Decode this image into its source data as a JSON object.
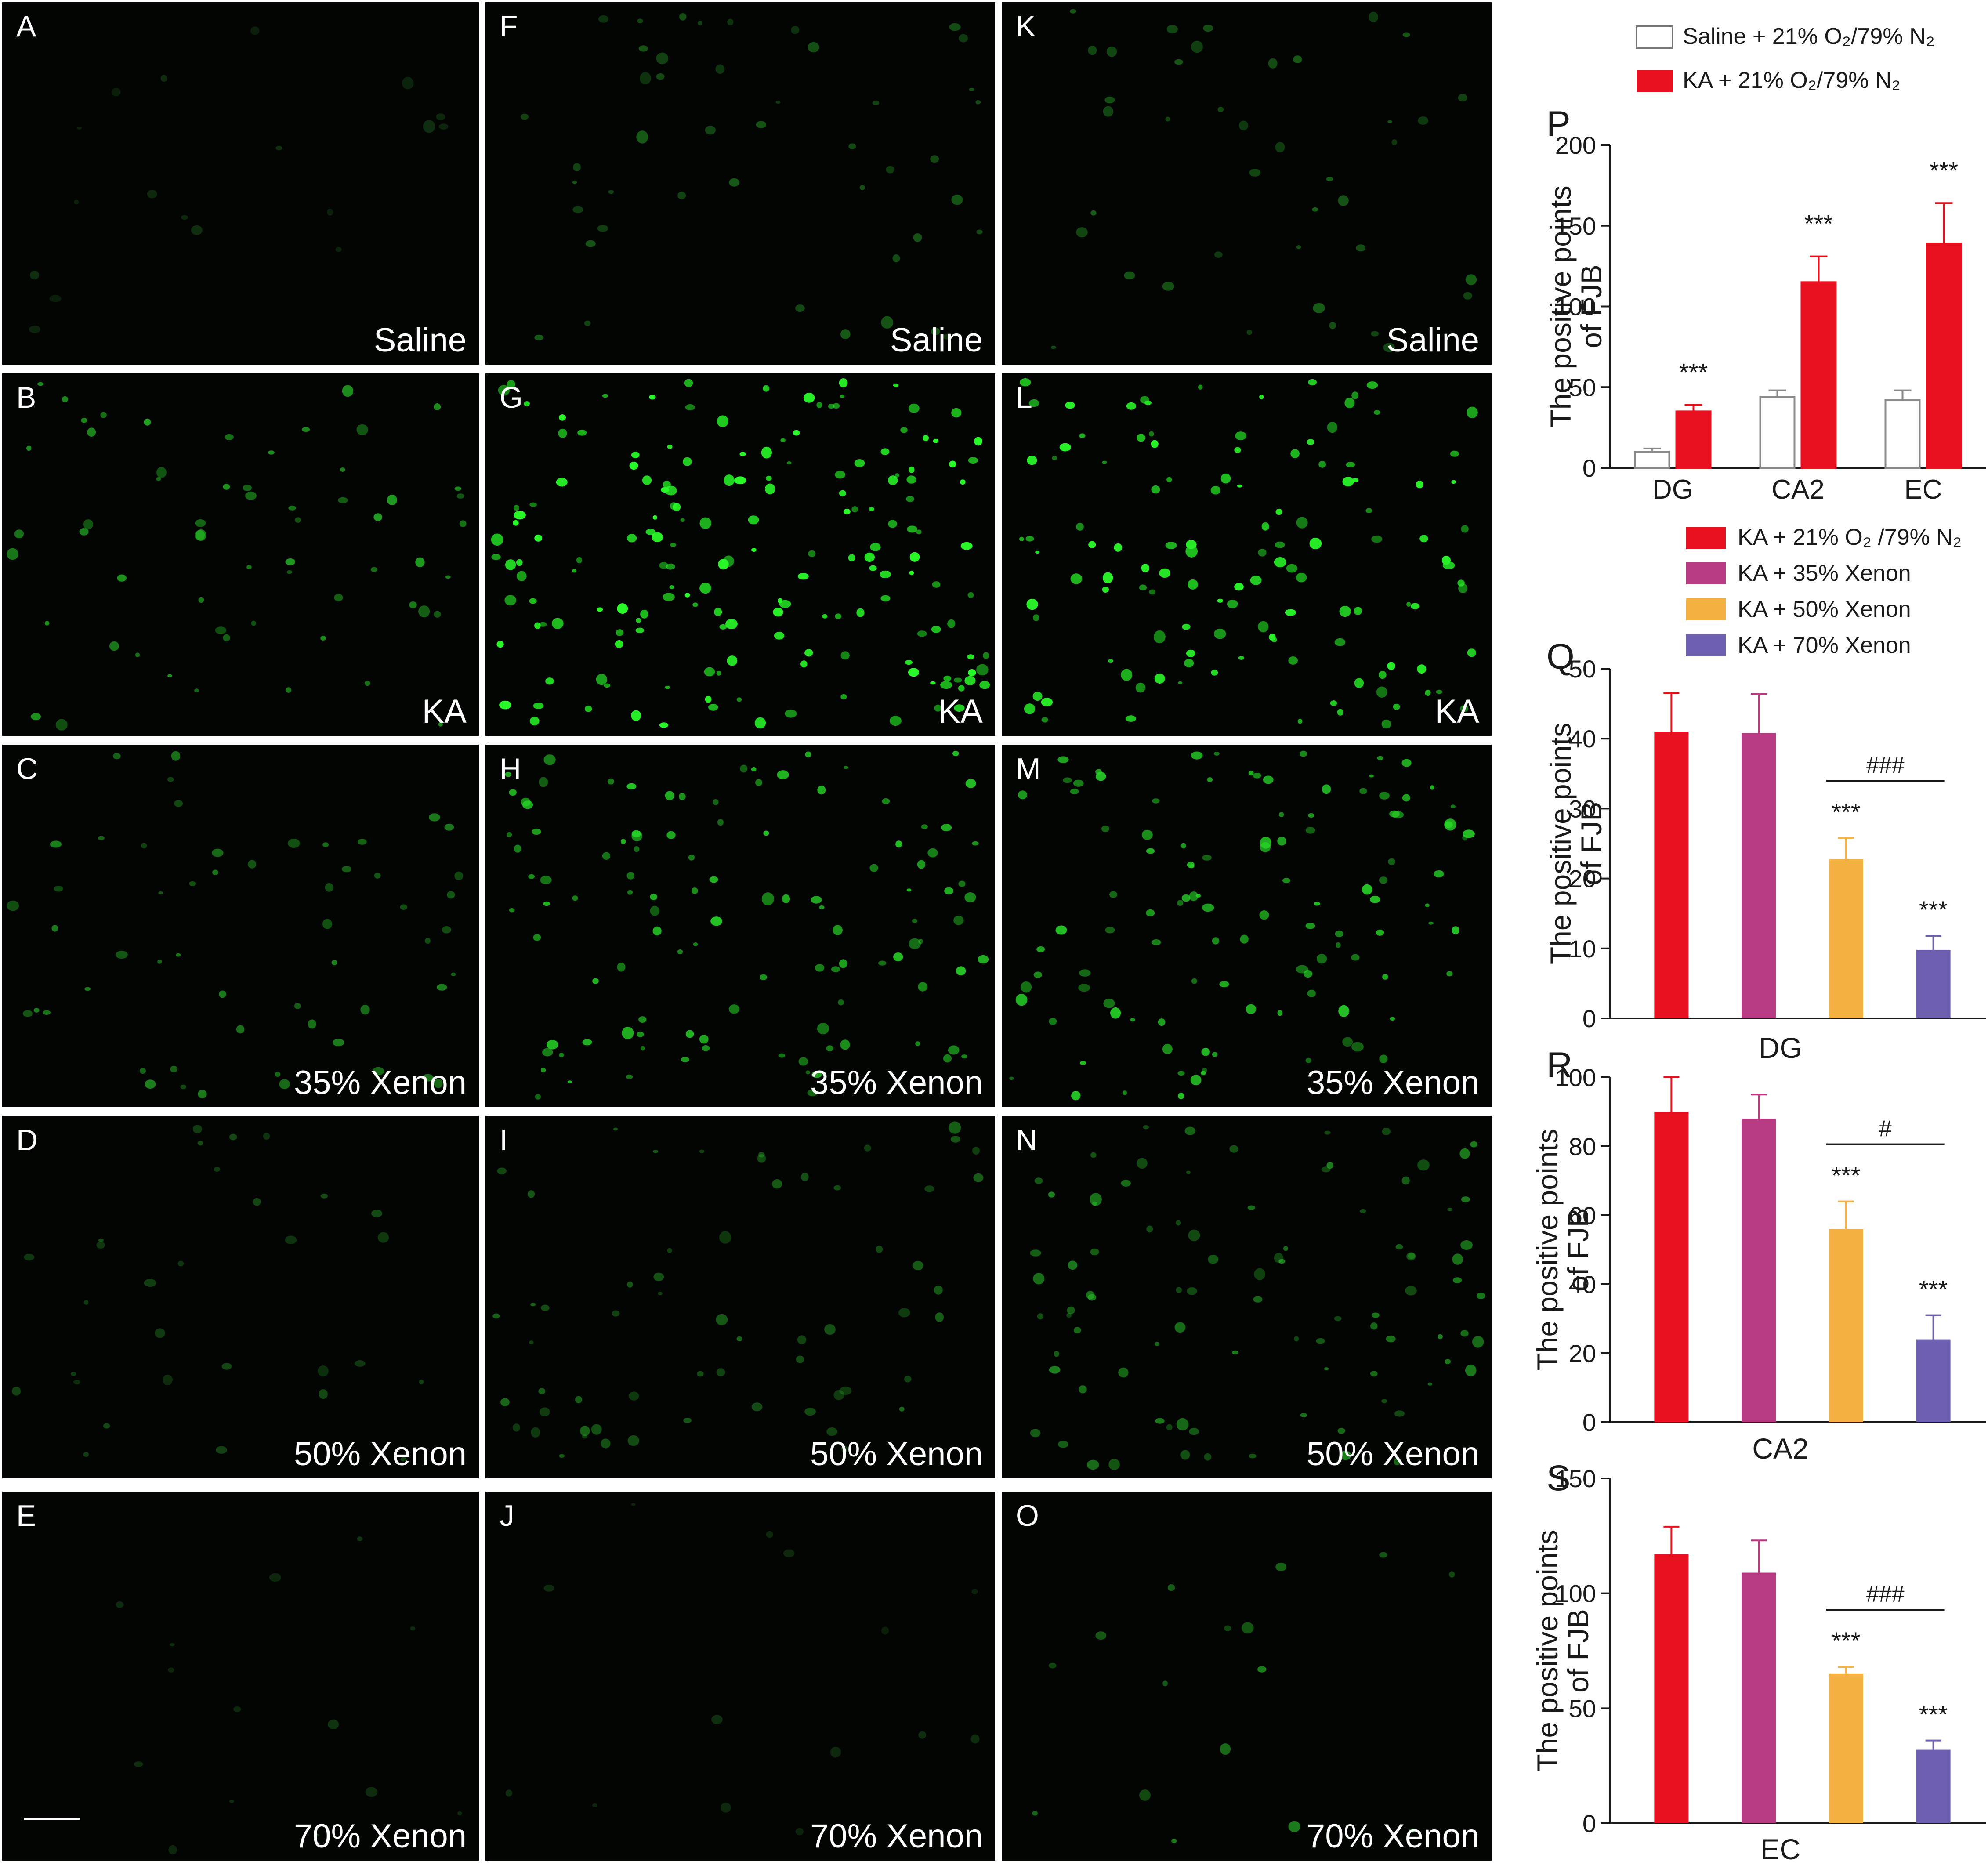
{
  "panels": [
    {
      "letter": "A",
      "label": "Saline"
    },
    {
      "letter": "B",
      "label": "KA"
    },
    {
      "letter": "C",
      "label": "35% Xenon"
    },
    {
      "letter": "D",
      "label": "50% Xenon"
    },
    {
      "letter": "E",
      "label": "70% Xenon"
    },
    {
      "letter": "F",
      "label": "Saline"
    },
    {
      "letter": "G",
      "label": "KA"
    },
    {
      "letter": "H",
      "label": "35% Xenon"
    },
    {
      "letter": "I",
      "label": "50% Xenon"
    },
    {
      "letter": "J",
      "label": "70% Xenon"
    },
    {
      "letter": "K",
      "label": "Saline"
    },
    {
      "letter": "L",
      "label": "KA"
    },
    {
      "letter": "M",
      "label": "35% Xenon"
    },
    {
      "letter": "N",
      "label": "50% Xenon"
    },
    {
      "letter": "O",
      "label": "70% Xenon"
    }
  ],
  "legend_top": [
    {
      "label": "Saline + 21% O₂/79% N₂",
      "color": "#ffffff"
    },
    {
      "label": "KA + 21% O₂/79% N₂",
      "color": "#e8101e"
    }
  ],
  "legend_bottom": [
    {
      "label": "KA + 21% O₂ /79% N₂",
      "color": "#e8101e"
    },
    {
      "label": "KA + 35% Xenon",
      "color": "#b83a82"
    },
    {
      "label": "KA + 50% Xenon",
      "color": "#f5b142"
    },
    {
      "label": "KA + 70% Xenon",
      "color": "#6e5fb0"
    }
  ],
  "ylabel_line1": "The positive points",
  "ylabel_line2": "of FJB",
  "chart_data": [
    {
      "panel": "P",
      "type": "bar",
      "categories": [
        "DG",
        "CA2",
        "EC"
      ],
      "ylim": [
        0,
        200
      ],
      "yticks": [
        0,
        50,
        100,
        150,
        200
      ],
      "series": [
        {
          "name": "Saline + 21% O₂/79% N₂",
          "values": [
            10,
            44,
            42
          ],
          "errors": [
            2,
            4,
            6
          ],
          "color": "#ffffff"
        },
        {
          "name": "KA + 21% O₂/79% N₂",
          "values": [
            35,
            115,
            139
          ],
          "errors": [
            4,
            16,
            25
          ],
          "color": "#e8101e"
        }
      ],
      "annotations": [
        {
          "text": "***",
          "category": "DG"
        },
        {
          "text": "***",
          "category": "CA2"
        },
        {
          "text": "***",
          "category": "EC"
        }
      ]
    },
    {
      "panel": "Q",
      "type": "bar",
      "xlabel": "DG",
      "ylim": [
        0,
        50
      ],
      "yticks": [
        0,
        10,
        20,
        30,
        40,
        50
      ],
      "values": [
        41,
        40.8,
        22.8,
        9.8
      ],
      "errors": [
        5.5,
        5.6,
        3,
        2
      ],
      "stars": [
        "",
        "",
        "***",
        "***"
      ],
      "hash": "###"
    },
    {
      "panel": "R",
      "type": "bar",
      "xlabel": "CA2",
      "ylim": [
        0,
        100
      ],
      "yticks": [
        0,
        20,
        40,
        60,
        80,
        100
      ],
      "values": [
        90,
        88,
        56,
        24
      ],
      "errors": [
        10,
        7,
        8,
        7
      ],
      "stars": [
        "",
        "",
        "***",
        "***"
      ],
      "hash": "#"
    },
    {
      "panel": "S",
      "type": "bar",
      "xlabel": "EC",
      "ylim": [
        0,
        150
      ],
      "yticks": [
        0,
        50,
        100,
        150
      ],
      "values": [
        117,
        109,
        65,
        32
      ],
      "errors": [
        12,
        14,
        3,
        4
      ],
      "stars": [
        "",
        "",
        "***",
        "***"
      ],
      "hash": "###"
    }
  ]
}
